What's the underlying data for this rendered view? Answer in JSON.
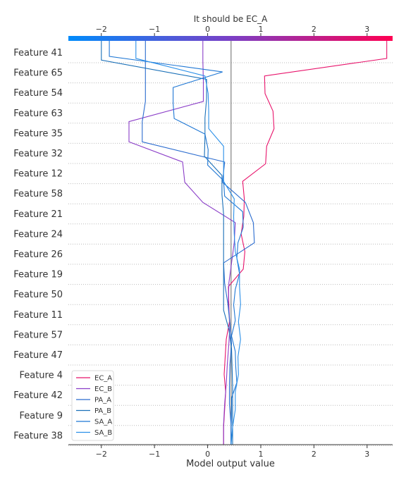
{
  "chart_data": {
    "type": "line",
    "title": "It should be EC_A",
    "xlabel": "Model output value",
    "ylabel": "",
    "xlim": [
      -2.62,
      3.48
    ],
    "xticks": [
      -2,
      -1,
      0,
      1,
      2,
      3
    ],
    "xtick_labels": [
      "−2",
      "−1",
      "0",
      "1",
      "2",
      "3"
    ],
    "base_value": 0.44,
    "colorbar": {
      "min_color": "#008bfb",
      "mid_color": "#7a3fc6",
      "max_color": "#ff0052"
    },
    "grid": "horizontal dotted",
    "legend_position": "lower-left",
    "features": [
      "Feature 41",
      "Feature 65",
      "Feature 54",
      "Feature 63",
      "Feature 35",
      "Feature 32",
      "Feature 12",
      "Feature 58",
      "Feature 21",
      "Feature 24",
      "Feature 26",
      "Feature 19",
      "Feature 50",
      "Feature 11",
      "Feature 57",
      "Feature 47",
      "Feature 4",
      "Feature 42",
      "Feature 9",
      "Feature 38"
    ],
    "series": [
      {
        "name": "EC_A",
        "color": "#e8136b",
        "values": [
          0.3,
          0.3,
          0.32,
          0.34,
          0.31,
          0.33,
          0.35,
          0.41,
          0.4,
          0.39,
          0.67,
          0.7,
          0.63,
          0.68,
          0.69,
          0.66,
          1.09,
          1.11,
          1.25,
          1.23,
          1.08,
          1.07,
          3.37,
          3.37
        ]
      },
      {
        "name": "EC_B",
        "color": "#8b3ec8",
        "values": [
          0.3,
          0.3,
          0.32,
          0.35,
          0.37,
          0.4,
          0.42,
          0.39,
          0.4,
          0.45,
          0.5,
          0.52,
          -0.09,
          -0.43,
          -0.47,
          -1.48,
          -1.48,
          -0.08,
          -0.08,
          -0.09,
          -0.09
        ]
      },
      {
        "name": "PA_A",
        "color": "#2b6ccf",
        "values": [
          0.44,
          0.44,
          0.41,
          0.41,
          0.42,
          0.45,
          0.42,
          0.38,
          0.32,
          0.3,
          0.88,
          0.86,
          0.71,
          0.28,
          0.32,
          -1.23,
          -1.23,
          -1.17,
          -1.17,
          -1.17,
          -1.17
        ]
      },
      {
        "name": "PA_B",
        "color": "#1a70b8",
        "values": [
          0.47,
          0.47,
          0.47,
          0.47,
          0.46,
          0.45,
          0.4,
          0.3,
          0.3,
          0.3,
          0.3,
          0.3,
          0.3,
          0.27,
          0.27,
          -0.06,
          -0.05,
          -0.05,
          -0.02,
          -0.02,
          -2.0,
          -2.0
        ]
      },
      {
        "name": "SA_A",
        "color": "#1f77d4",
        "values": [
          0.44,
          0.44,
          0.45,
          0.45,
          0.55,
          0.53,
          0.52,
          0.45,
          0.52,
          0.49,
          0.52,
          0.6,
          0.55,
          0.57,
          0.67,
          0.66,
          0.32,
          0.3,
          0.0,
          0.01,
          -0.05,
          -0.63,
          -0.65,
          -0.65,
          0.28,
          -1.85,
          -1.85
        ]
      },
      {
        "name": "SA_B",
        "color": "#2a8fe8",
        "values": [
          0.44,
          0.47,
          0.52,
          0.52,
          0.58,
          0.57,
          0.62,
          0.58,
          0.62,
          0.6,
          0.6,
          0.52,
          0.5,
          0.49,
          0.5,
          0.3,
          0.3,
          0.3,
          0.02,
          0.02,
          0.01,
          -0.05,
          -1.35,
          -1.35
        ]
      }
    ]
  }
}
